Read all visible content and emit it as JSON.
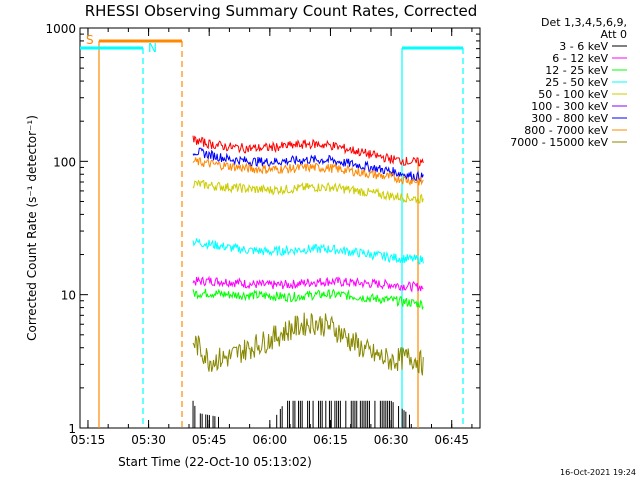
{
  "chart_data": {
    "type": "line",
    "title": "RHESSI Observing Summary Count Rates, Corrected",
    "xlabel": "Start Time (22-Oct-10 05:13:02)",
    "ylabel": "Corrected Count Rate (s⁻¹ detector⁻¹)",
    "y_scale": "log",
    "ylim": [
      1,
      1000
    ],
    "x_time_range": [
      "05:13",
      "06:52"
    ],
    "x_ticks": [
      "05:15",
      "05:30",
      "05:45",
      "06:00",
      "06:15",
      "06:30",
      "06:45"
    ],
    "y_ticks": [
      "1",
      "10",
      "100",
      "1000"
    ],
    "legend_header": [
      "Det 1,3,4,5,6,9,",
      "Att 0"
    ],
    "legend_position": "right",
    "series": [
      {
        "name": "3 - 6 keV",
        "color": "#000000",
        "x": [
          "05:41",
          "05:42",
          "06:00",
          "06:04",
          "06:08",
          "06:12",
          "06:16",
          "06:20",
          "06:24",
          "06:28",
          "06:30",
          "06:38"
        ],
        "values": [
          1.6,
          1.3,
          1.0,
          1.6,
          1.6,
          1.6,
          1.6,
          1.6,
          1.6,
          1.6,
          1.6,
          1.0
        ]
      },
      {
        "name": "6 - 12 keV",
        "color": "#ff00ff",
        "x": [
          "05:41",
          "05:45",
          "05:50",
          "05:55",
          "06:00",
          "06:05",
          "06:10",
          "06:15",
          "06:20",
          "06:25",
          "06:30",
          "06:35",
          "06:38"
        ],
        "values": [
          12.5,
          12.7,
          12.5,
          12.0,
          11.8,
          11.9,
          12.4,
          12.6,
          12.3,
          12.1,
          11.9,
          11.5,
          11.4
        ]
      },
      {
        "name": "12 - 25 keV",
        "color": "#00ff00",
        "x": [
          "05:41",
          "05:45",
          "05:50",
          "05:55",
          "06:00",
          "06:05",
          "06:10",
          "06:15",
          "06:20",
          "06:25",
          "06:30",
          "06:35",
          "06:38"
        ],
        "values": [
          10.2,
          10.3,
          10.0,
          9.9,
          9.8,
          9.6,
          9.9,
          10.1,
          9.8,
          9.4,
          9.1,
          8.7,
          8.5
        ]
      },
      {
        "name": "25 - 50 keV",
        "color": "#00ffff",
        "x": [
          "05:41",
          "05:45",
          "05:50",
          "05:55",
          "06:00",
          "06:05",
          "06:10",
          "06:15",
          "06:20",
          "06:25",
          "06:30",
          "06:35",
          "06:38"
        ],
        "values": [
          25.0,
          24.0,
          22.5,
          21.5,
          21.0,
          21.5,
          22.0,
          22.0,
          21.0,
          20.0,
          19.0,
          18.5,
          18.3
        ]
      },
      {
        "name": "50 - 100 keV",
        "color": "#cccc00",
        "x": [
          "05:41",
          "05:45",
          "05:50",
          "05:55",
          "06:00",
          "06:05",
          "06:10",
          "06:15",
          "06:20",
          "06:25",
          "06:30",
          "06:35",
          "06:38"
        ],
        "values": [
          68,
          66,
          64,
          62,
          61,
          62,
          64,
          64,
          61,
          58,
          55,
          53,
          52
        ]
      },
      {
        "name": "100 - 300 keV",
        "color": "#8800ff",
        "x": [],
        "values": []
      },
      {
        "name": "300 - 800 keV",
        "color": "#0000ff",
        "x": [
          "05:41",
          "05:45",
          "05:50",
          "05:55",
          "06:00",
          "06:05",
          "06:10",
          "06:15",
          "06:20",
          "06:25",
          "06:30",
          "06:35",
          "06:38"
        ],
        "values": [
          120,
          112,
          104,
          100,
          99,
          101,
          103,
          102,
          96,
          90,
          84,
          78,
          76
        ]
      },
      {
        "name": "800 - 7000 keV",
        "color": "#ff8800",
        "x": [
          "05:41",
          "05:45",
          "05:50",
          "05:55",
          "06:00",
          "06:05",
          "06:10",
          "06:15",
          "06:20",
          "06:25",
          "06:30",
          "06:35",
          "06:38"
        ],
        "values": [
          100,
          96,
          92,
          88,
          87,
          88,
          90,
          89,
          85,
          80,
          76,
          72,
          70
        ]
      },
      {
        "name": "7000 - 15000 keV",
        "color": "#888800",
        "x": [
          "05:41",
          "05:45",
          "05:50",
          "05:55",
          "06:00",
          "06:05",
          "06:10",
          "06:15",
          "06:20",
          "06:25",
          "06:30",
          "06:35",
          "06:38"
        ],
        "values": [
          4.5,
          3.2,
          3.4,
          4.0,
          4.6,
          5.5,
          6.2,
          5.8,
          4.5,
          3.6,
          3.2,
          3.4,
          3.0
        ]
      },
      {
        "name": "",
        "color": "#ff0000",
        "x": [
          "05:41",
          "05:45",
          "05:50",
          "05:55",
          "06:00",
          "06:05",
          "06:10",
          "06:15",
          "06:20",
          "06:25",
          "06:30",
          "06:35",
          "06:38"
        ],
        "values": [
          145,
          135,
          128,
          125,
          127,
          131,
          135,
          132,
          122,
          112,
          104,
          99,
          98
        ]
      }
    ],
    "markers": [
      {
        "label": "S",
        "color": "#ff8800"
      },
      {
        "label": "N",
        "color": "#00ffff"
      }
    ],
    "timestamp": "16-Oct-2021 19:24"
  }
}
